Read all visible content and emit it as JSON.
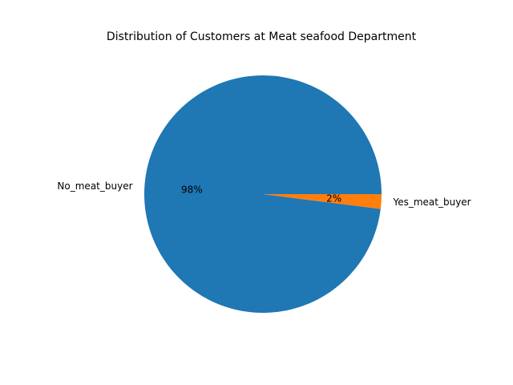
{
  "chart_data": {
    "type": "pie",
    "title": "Distribution of Customers at Meat seafood Department",
    "slices": [
      {
        "label": "No_meat_buyer",
        "value": 98,
        "pct_label": "98%",
        "color": "#1f77b4"
      },
      {
        "label": "Yes_meat_buyer",
        "value": 2,
        "pct_label": "2%",
        "color": "#ff7f0e"
      }
    ]
  }
}
